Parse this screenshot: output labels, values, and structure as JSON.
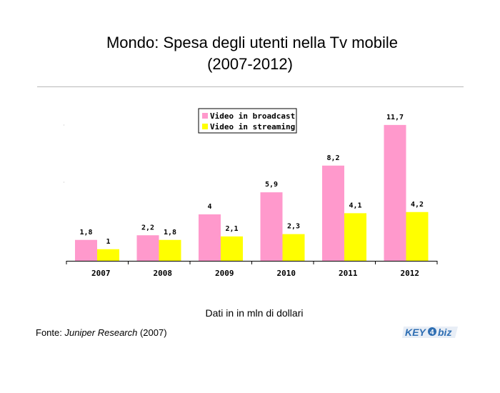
{
  "title": {
    "line1": "Mondo: Spesa degli utenti nella Tv mobile",
    "line2": "(2007-2012)"
  },
  "subtitle": "Dati in in mln di dollari",
  "source": {
    "prefix": "Fonte: ",
    "name": "Juniper Research",
    "suffix": " (2007)"
  },
  "logo": {
    "text": "KEY4biz",
    "color": "#2f6fb3"
  },
  "chart_data": {
    "type": "bar",
    "categories": [
      "2007",
      "2008",
      "2009",
      "2010",
      "2011",
      "2012"
    ],
    "series": [
      {
        "name": "Video in broadcast",
        "values": [
          1.8,
          2.2,
          4,
          5.9,
          8.2,
          11.7
        ],
        "labels": [
          "1,8",
          "2,2",
          "4",
          "5,9",
          "8,2",
          "11,7"
        ],
        "color": "#ff99cc"
      },
      {
        "name": "Video in streaming",
        "values": [
          1,
          1.8,
          2.1,
          2.3,
          4.1,
          4.2
        ],
        "labels": [
          "1",
          "1,8",
          "2,1",
          "2,3",
          "4,1",
          "4,2"
        ],
        "color": "#ffff00"
      }
    ],
    "ylim": [
      0,
      12
    ],
    "grid": false,
    "legend": "top-center"
  }
}
